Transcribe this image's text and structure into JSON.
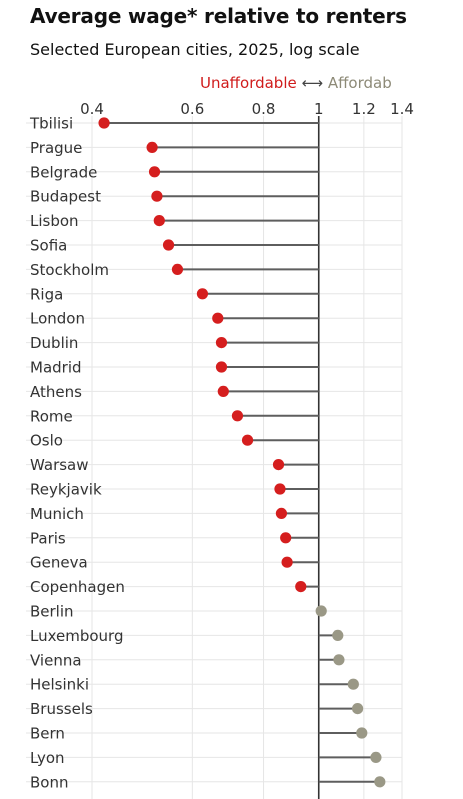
{
  "title": "Average wage* relative to renters",
  "subtitle": "Selected European cities, 2025, log scale",
  "legend": {
    "unaffordable": "Unaffordable",
    "arrow": "⟷",
    "affordable": "Affordab"
  },
  "colors": {
    "unaffordable": "#d51e1e",
    "affordable": "#9a9886",
    "stem": "#5e5e5e",
    "grid": "#e6e6e6",
    "baseline": "#333333"
  },
  "chart_data": {
    "type": "lollipop",
    "x_scale": "log",
    "baseline": 1,
    "xlim": [
      0.4,
      1.4
    ],
    "xticks": [
      0.4,
      0.6,
      0.8,
      1,
      1.2,
      1.4
    ],
    "xtick_labels": [
      "0.4",
      "0.6",
      "0.8",
      "1",
      "1.2",
      "1.4"
    ],
    "grid": true,
    "categories": [
      "Tbilisi",
      "Prague",
      "Belgrade",
      "Budapest",
      "Lisbon",
      "Sofia",
      "Stockholm",
      "Riga",
      "London",
      "Dublin",
      "Madrid",
      "Athens",
      "Rome",
      "Oslo",
      "Warsaw",
      "Reykjavik",
      "Munich",
      "Paris",
      "Geneva",
      "Copenhagen",
      "Berlin",
      "Luxembourg",
      "Vienna",
      "Helsinki",
      "Brussels",
      "Bern",
      "Lyon",
      "Bonn"
    ],
    "values": [
      0.42,
      0.51,
      0.515,
      0.52,
      0.525,
      0.545,
      0.565,
      0.625,
      0.665,
      0.675,
      0.675,
      0.68,
      0.72,
      0.75,
      0.85,
      0.855,
      0.86,
      0.875,
      0.88,
      0.93,
      1.01,
      1.08,
      1.085,
      1.15,
      1.17,
      1.19,
      1.26,
      1.28
    ]
  }
}
